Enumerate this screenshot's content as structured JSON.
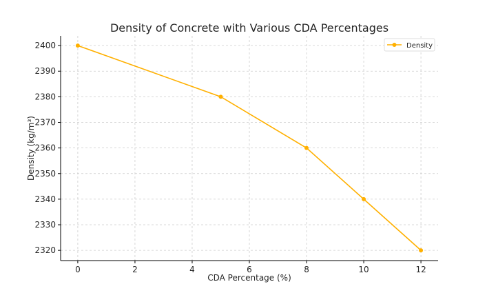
{
  "chart_data": {
    "type": "line",
    "title": "Density of Concrete with Various CDA Percentages",
    "xlabel": "CDA Percentage (%)",
    "ylabel": "Density (kg/m³)",
    "xlim": [
      -0.6,
      12.6
    ],
    "ylim": [
      2316,
      2403.8
    ],
    "xticks": [
      0,
      2,
      4,
      6,
      8,
      10,
      12
    ],
    "yticks": [
      2320,
      2330,
      2340,
      2350,
      2360,
      2370,
      2380,
      2390,
      2400
    ],
    "grid": true,
    "legend": "top-right",
    "series": [
      {
        "name": "Density",
        "color": "#FFB000",
        "x": [
          0,
          5,
          8,
          10,
          12
        ],
        "y": [
          2400,
          2380,
          2360,
          2340,
          2320
        ]
      }
    ]
  }
}
